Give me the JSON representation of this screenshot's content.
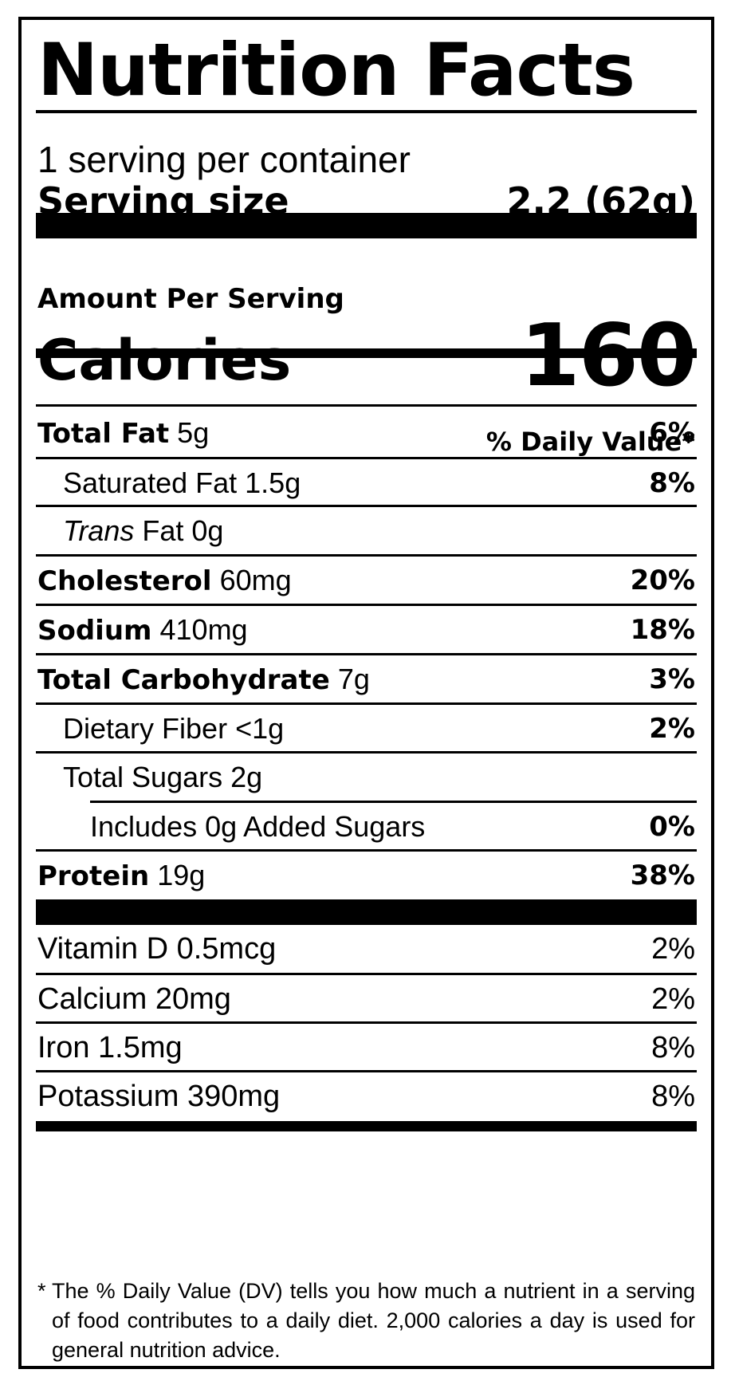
{
  "title": "Nutrition Facts",
  "servings_per_container": "1 serving per container",
  "serving_size": {
    "label": "Serving size",
    "value": "2.2 (62g)"
  },
  "amount_per_serving": "Amount Per Serving",
  "calories": {
    "label": "Calories",
    "value": "160"
  },
  "daily_value_header": "% Daily Value*",
  "nutrients": [
    {
      "label": "Total Fat",
      "amount": "5g",
      "dv": "6%"
    },
    {
      "label": "Saturated Fat",
      "amount": "1.5g",
      "dv": "8%"
    },
    {
      "label_italic": "Trans",
      "label": "Fat",
      "amount": "0g",
      "dv": ""
    },
    {
      "label": "Cholesterol",
      "amount": "60mg",
      "dv": "20%"
    },
    {
      "label": "Sodium",
      "amount": "410mg",
      "dv": "18%"
    },
    {
      "label": "Total Carbohydrate",
      "amount": "7g",
      "dv": "3%"
    },
    {
      "label": "Dietary Fiber",
      "amount": "<1g",
      "dv": "2%"
    },
    {
      "label": "Total Sugars",
      "amount": "2g",
      "dv": ""
    },
    {
      "label": "Includes 0g Added Sugars",
      "dv": "0%"
    },
    {
      "label": "Protein",
      "amount": "19g",
      "dv": "38%"
    }
  ],
  "vitamins": [
    {
      "label": "Vitamin D",
      "amount": "0.5mcg",
      "dv": "2%"
    },
    {
      "label": "Calcium",
      "amount": "20mg",
      "dv": "2%"
    },
    {
      "label": "Iron",
      "amount": "1.5mg",
      "dv": "8%"
    },
    {
      "label": "Potassium",
      "amount": "390mg",
      "dv": "8%"
    }
  ],
  "footnote": {
    "star": "*",
    "text": "The % Daily Value (DV) tells you how much a nutrient in a serving of food contributes to a daily diet. 2,000 calories a day is used for general nutrition advice."
  }
}
